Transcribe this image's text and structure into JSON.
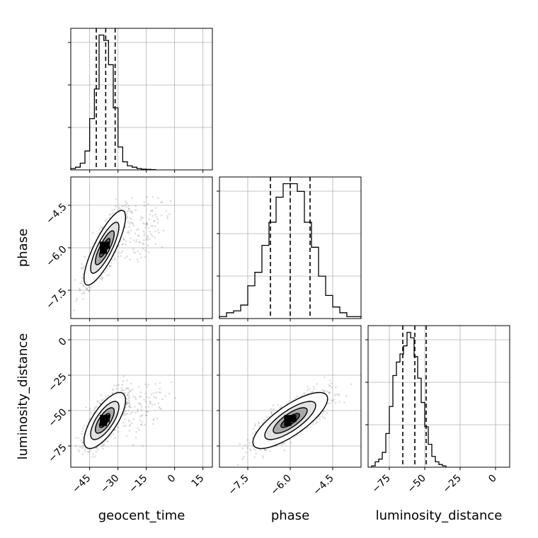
{
  "chart_data": {
    "type": "corner",
    "params": [
      {
        "key": "geocent_time",
        "label": "geocent_time",
        "range": [
          -55,
          20
        ],
        "ticks": [
          -45,
          -30,
          -15,
          0,
          15
        ],
        "tick_labels": [
          "−45",
          "−30",
          "−15",
          "0",
          "15"
        ]
      },
      {
        "key": "phase",
        "label": "phase",
        "range": [
          -8.5,
          -3.5
        ],
        "ticks": [
          -7.5,
          -6.0,
          -4.5
        ],
        "tick_labels": [
          "−7.5",
          "−6.0",
          "−4.5"
        ]
      },
      {
        "key": "luminosity_distance",
        "label": "luminosity_distance",
        "range": [
          -90,
          10
        ],
        "ticks": [
          -75,
          -50,
          -25,
          0
        ],
        "tick_labels": [
          "−75",
          "−50",
          "−25",
          "0"
        ]
      }
    ],
    "histograms": [
      {
        "param": "geocent_time",
        "quantiles": [
          -41.5,
          -36.5,
          -31.5
        ],
        "bins": [
          [
            -55,
            -52.5,
            1
          ],
          [
            -52.5,
            -50,
            2
          ],
          [
            -50,
            -47.5,
            5
          ],
          [
            -47.5,
            -45,
            14
          ],
          [
            -45,
            -42.5,
            38
          ],
          [
            -42.5,
            -40,
            60
          ],
          [
            -40,
            -37.5,
            100
          ],
          [
            -37.5,
            -35,
            96
          ],
          [
            -35,
            -32.5,
            78
          ],
          [
            -32.5,
            -30,
            46
          ],
          [
            -30,
            -27.5,
            17
          ],
          [
            -27.5,
            -25,
            6
          ],
          [
            -25,
            -22.5,
            3
          ],
          [
            -22.5,
            -20,
            2
          ],
          [
            -20,
            -17.5,
            1
          ],
          [
            -17.5,
            -15,
            0.5
          ],
          [
            -15,
            -12.5,
            0.4
          ],
          [
            -12.5,
            -10,
            0.2
          ]
        ]
      },
      {
        "param": "phase",
        "quantiles": [
          -6.7,
          -6.0,
          -5.3
        ],
        "bins": [
          [
            -8.5,
            -8.25,
            1
          ],
          [
            -8.25,
            -8.0,
            3
          ],
          [
            -8.0,
            -7.75,
            4
          ],
          [
            -7.75,
            -7.5,
            7
          ],
          [
            -7.5,
            -7.25,
            17
          ],
          [
            -7.25,
            -7.0,
            24
          ],
          [
            -7.0,
            -6.75,
            38
          ],
          [
            -6.75,
            -6.5,
            50
          ],
          [
            -6.5,
            -6.25,
            63
          ],
          [
            -6.25,
            -6.0,
            70
          ],
          [
            -6.0,
            -5.75,
            70
          ],
          [
            -5.75,
            -5.5,
            66
          ],
          [
            -5.5,
            -5.25,
            50
          ],
          [
            -5.25,
            -5.0,
            37
          ],
          [
            -5.0,
            -4.75,
            22
          ],
          [
            -4.75,
            -4.5,
            12
          ],
          [
            -4.5,
            -4.25,
            6
          ],
          [
            -4.25,
            -4.0,
            3
          ],
          [
            -4.0,
            -3.75,
            1
          ],
          [
            -3.75,
            -3.5,
            1
          ]
        ]
      },
      {
        "param": "luminosity_distance",
        "quantiles": [
          -65.5,
          -57,
          -49
        ],
        "bins": [
          [
            -87.5,
            -85,
            1
          ],
          [
            -85,
            -82.5,
            4
          ],
          [
            -82.5,
            -80,
            6
          ],
          [
            -80,
            -77.5,
            11
          ],
          [
            -77.5,
            -75,
            25
          ],
          [
            -75,
            -72.5,
            45
          ],
          [
            -72.5,
            -70,
            68
          ],
          [
            -70,
            -67.5,
            78
          ],
          [
            -67.5,
            -65,
            84
          ],
          [
            -65,
            -62.5,
            90
          ],
          [
            -62.5,
            -60,
            100
          ],
          [
            -60,
            -57.5,
            96
          ],
          [
            -57.5,
            -55,
            82
          ],
          [
            -55,
            -52.5,
            66
          ],
          [
            -52.5,
            -50,
            48
          ],
          [
            -50,
            -47.5,
            30
          ],
          [
            -47.5,
            -45,
            17
          ],
          [
            -45,
            -42.5,
            8
          ],
          [
            -42.5,
            -40,
            4
          ],
          [
            -40,
            -37.5,
            2
          ],
          [
            -37.5,
            -35,
            1
          ]
        ]
      }
    ],
    "pairs": [
      {
        "x": "geocent_time",
        "y": "phase",
        "mean": [
          -37,
          -6.0
        ],
        "sd": [
          5,
          0.6
        ],
        "rho": 0.82,
        "n": 1500
      },
      {
        "x": "geocent_time",
        "y": "luminosity_distance",
        "mean": [
          -37,
          -57
        ],
        "sd": [
          5,
          9
        ],
        "rho": 0.72,
        "n": 1500
      },
      {
        "x": "phase",
        "y": "luminosity_distance",
        "mean": [
          -6.0,
          -57
        ],
        "sd": [
          0.6,
          9
        ],
        "rho": 0.78,
        "n": 1500
      }
    ],
    "grid": true
  }
}
